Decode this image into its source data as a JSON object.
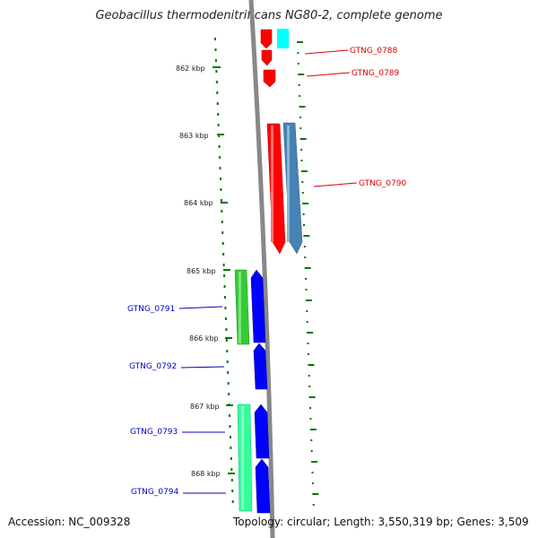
{
  "title": "Geobacillus thermodenitrificans NG80-2, complete genome",
  "ruler": [
    "862 kbp",
    "863 kbp",
    "864 kbp",
    "865 kbp",
    "866 kbp",
    "867 kbp",
    "868 kbp"
  ],
  "genes_right": [
    {
      "label": "GTNG_0788",
      "color": "#e00000"
    },
    {
      "label": "GTNG_0789",
      "color": "#e00000"
    },
    {
      "label": "GTNG_0790",
      "color": "#e00000"
    }
  ],
  "genes_left": [
    {
      "label": "GTNG_0791",
      "color": "#0000c0"
    },
    {
      "label": "GTNG_0792",
      "color": "#0000c0"
    },
    {
      "label": "GTNG_0793",
      "color": "#0000c0"
    },
    {
      "label": "GTNG_0794",
      "color": "#0000c0"
    }
  ],
  "colors": {
    "forward_strand": "#ff0000",
    "reverse_strand": "#0000ff",
    "cyan_feature": "#00ffff",
    "steel_feature": "#4682b4",
    "green_feature": "#33cc33",
    "teal_feature": "#33ff99",
    "backbone": "#888888",
    "ticks": "#007700"
  },
  "footer": {
    "accession": "Accession: NC_009328",
    "topology": "Topology: circular; Length: 3,550,319 bp; Genes: 3,509"
  }
}
